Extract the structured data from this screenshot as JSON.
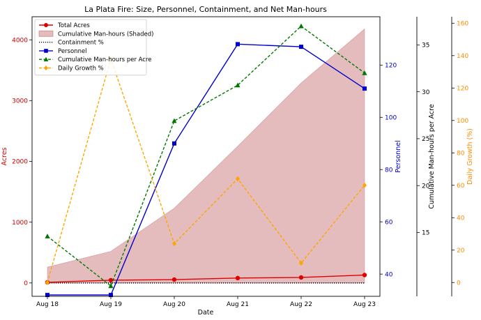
{
  "chart_data": {
    "type": "line",
    "title": "La Plata Fire: Size, Personnel, Containment, and Net Man-hours",
    "xlabel": "Date",
    "categories": [
      "Aug 18",
      "Aug 19",
      "Aug 20",
      "Aug 21",
      "Aug 22",
      "Aug 23"
    ],
    "axes": {
      "acres": {
        "label": "Acres",
        "color": "#d00000",
        "position": "left",
        "ylim": [
          -220,
          4380
        ],
        "ticks": [
          0,
          1000,
          2000,
          3000,
          4000
        ]
      },
      "personnel": {
        "label": "Personnel",
        "color": "#0000cc",
        "position": "right",
        "ylim": [
          31.5,
          138.5
        ],
        "ticks": [
          40,
          60,
          80,
          100,
          120
        ]
      },
      "man_hours_per_acre": {
        "label": "Cumulative Man-hours per Acre",
        "color": "#000000",
        "position": "right-outer-1",
        "ylim": [
          8.2,
          38.0
        ],
        "ticks": [
          15,
          20,
          25,
          30,
          35
        ]
      },
      "daily_growth": {
        "label": "Daily Growth (%)",
        "color": "#ff8c00",
        "position": "right-outer-2",
        "ylim": [
          -8.5,
          164
        ],
        "ticks": [
          0,
          20,
          40,
          60,
          80,
          100,
          120,
          140,
          160
        ]
      }
    },
    "series": [
      {
        "name": "Total Acres",
        "axis": "acres",
        "color": "#e00000",
        "style": "line",
        "marker": "circle",
        "values": [
          10,
          45,
          55,
          80,
          90,
          130
        ]
      },
      {
        "name": "Cumulative Man-hours (Shaded)",
        "axis": "acres",
        "color": "#b5484b",
        "style": "area",
        "values": [
          260,
          520,
          1230,
          2250,
          3290,
          4180
        ]
      },
      {
        "name": "Containment %",
        "axis": "acres",
        "color": "#000000",
        "style": "dotted",
        "values": [
          0,
          0,
          0,
          0,
          0,
          0
        ]
      },
      {
        "name": "Personnel",
        "axis": "personnel",
        "color": "#0000cc",
        "style": "line",
        "marker": "square",
        "values": [
          32,
          32,
          90,
          128,
          127,
          111
        ]
      },
      {
        "name": "Cumulative Man-hours per Acre",
        "axis": "man_hours_per_acre",
        "color": "#007700",
        "style": "dashed",
        "marker": "triangle",
        "values": [
          14.6,
          9.3,
          26.9,
          30.7,
          37.0,
          32.0
        ]
      },
      {
        "name": "Daily Growth %",
        "axis": "daily_growth",
        "color": "#ffa500",
        "style": "dashed",
        "marker": "diamond",
        "values": [
          0,
          138,
          24,
          64,
          12,
          60
        ]
      }
    ],
    "legend_position": "top-left",
    "grid": false
  }
}
